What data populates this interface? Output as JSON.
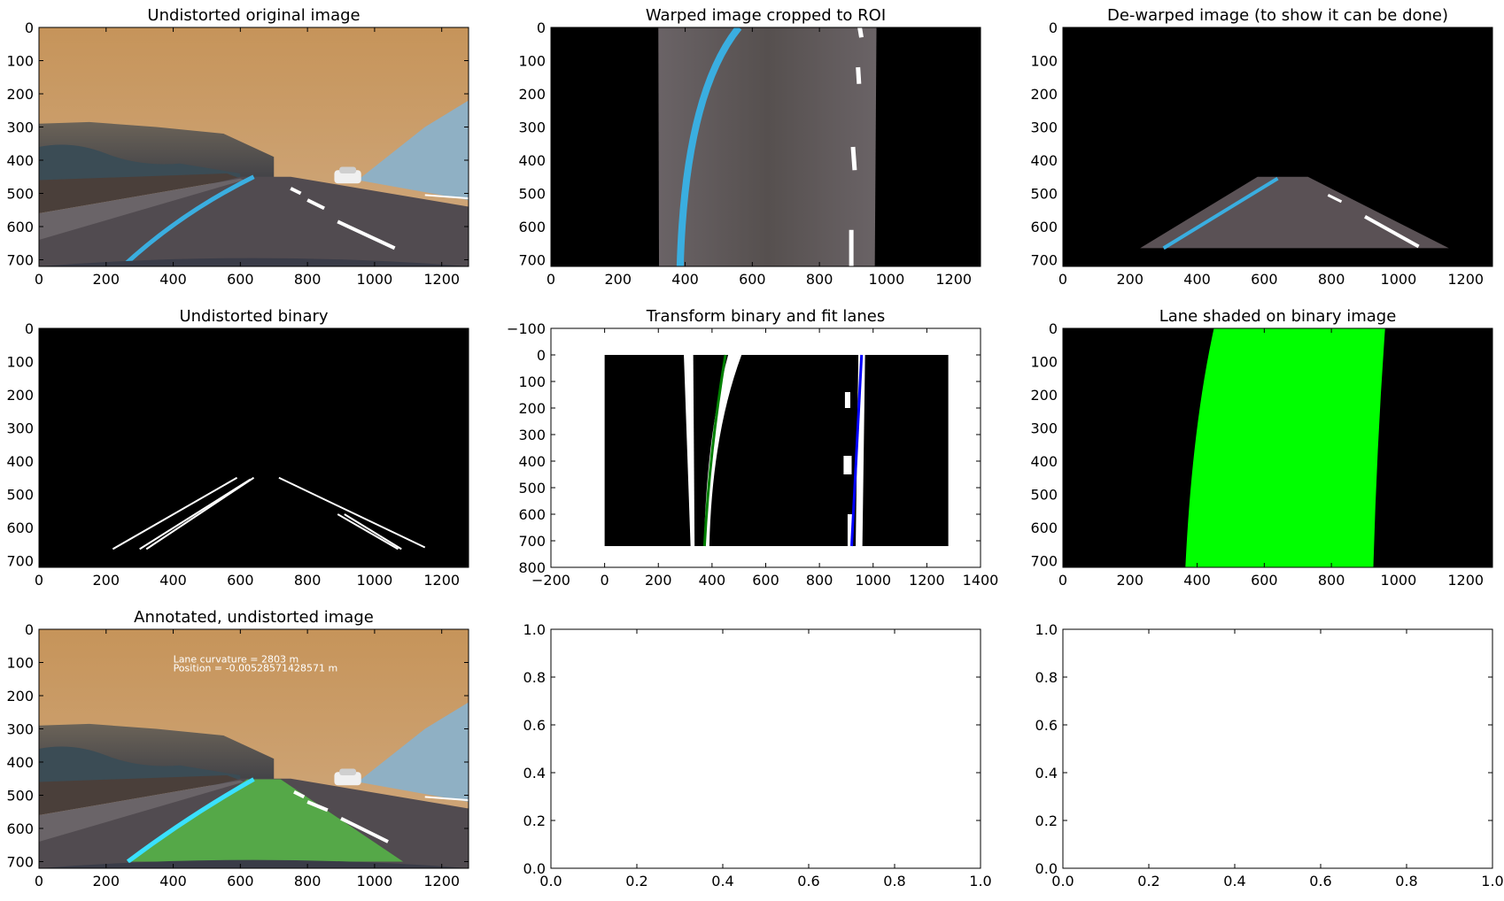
{
  "chart_data": [
    {
      "type": "image",
      "title": "Undistorted original image",
      "xlim": [
        0,
        1280
      ],
      "ylim": [
        720,
        0
      ],
      "xticks": [
        0,
        200,
        400,
        600,
        800,
        1000,
        1200
      ],
      "yticks": [
        0,
        100,
        200,
        300,
        400,
        500,
        600,
        700
      ],
      "image_description": "Dashcam road scene with sky, hills, blue left lane line and white dashed right lane markings",
      "colors": {
        "sky": "#c49a66",
        "road": "#4e4a4f",
        "left_lane_line": "#3aaee0",
        "right_lane_line": "#ffffff"
      }
    },
    {
      "type": "image",
      "title": "Warped image cropped to ROI",
      "xlim": [
        0,
        1280
      ],
      "ylim": [
        720,
        0
      ],
      "xticks": [
        0,
        200,
        400,
        600,
        800,
        1000,
        1200
      ],
      "yticks": [
        0,
        100,
        200,
        300,
        400,
        500,
        600,
        700
      ],
      "image_description": "Bird's-eye warped road strip between x≈320 and x≈970 on black background",
      "colors": {
        "background": "#000000",
        "road": "#5f5558",
        "left_lane_line": "#3aaee0",
        "right_lane_line": "#ffffff"
      }
    },
    {
      "type": "image",
      "title": "De-warped image (to show it can be done)",
      "xlim": [
        0,
        1280
      ],
      "ylim": [
        720,
        0
      ],
      "xticks": [
        0,
        200,
        400,
        600,
        800,
        1000,
        1200
      ],
      "yticks": [
        0,
        100,
        200,
        300,
        400,
        500,
        600,
        700
      ],
      "image_description": "Trapezoidal road region from y≈450 to y≈665 on black background",
      "colors": {
        "background": "#000000",
        "road": "#5a5155",
        "left_lane_line": "#3aaee0",
        "right_lane_line": "#ffffff"
      }
    },
    {
      "type": "image",
      "title": "Undistorted binary",
      "xlim": [
        0,
        1280
      ],
      "ylim": [
        720,
        0
      ],
      "xticks": [
        0,
        200,
        400,
        600,
        800,
        1000,
        1200
      ],
      "yticks": [
        0,
        100,
        200,
        300,
        400,
        500,
        600,
        700
      ],
      "image_description": "Black binary image with white diagonal lane-edge lines converging near (680, 450)",
      "colors": {
        "background": "#000000",
        "foreground": "#ffffff"
      }
    },
    {
      "type": "image",
      "title": "Transform binary and fit lanes",
      "xlim": [
        -200,
        1400
      ],
      "ylim": [
        800,
        -100
      ],
      "xticks": [
        -200,
        0,
        200,
        400,
        600,
        800,
        1000,
        1200,
        1400
      ],
      "yticks": [
        -100,
        0,
        100,
        200,
        300,
        400,
        500,
        600,
        700,
        800
      ],
      "image_description": "Warped binary image (0–1280 by 0–720) with white lane pixels; green polynomial fit on left lane, blue fit on right lane",
      "fits": [
        {
          "color": "#007f00",
          "x_top": 450,
          "x_bottom": 372
        },
        {
          "color": "#0000ff",
          "x_top": 957,
          "x_bottom": 920
        }
      ],
      "colors": {
        "background": "#000000",
        "lane_pixels": "#ffffff",
        "left_fit": "#007f00",
        "right_fit": "#0000ff"
      }
    },
    {
      "type": "image",
      "title": "Lane shaded on binary image",
      "xlim": [
        0,
        1280
      ],
      "ylim": [
        720,
        0
      ],
      "xticks": [
        0,
        200,
        400,
        600,
        800,
        1000,
        1200
      ],
      "yticks": [
        0,
        100,
        200,
        300,
        400,
        500,
        600,
        700
      ],
      "image_description": "Black image with bright green lane polygon; left edge ≈450→365, right edge ≈960→925 from top to bottom",
      "colors": {
        "background": "#000000",
        "lane_fill": "#00ff00"
      }
    },
    {
      "type": "image",
      "title": "Annotated, undistorted image",
      "xlim": [
        0,
        1280
      ],
      "ylim": [
        720,
        0
      ],
      "xticks": [
        0,
        200,
        400,
        600,
        800,
        1000,
        1200
      ],
      "yticks": [
        0,
        100,
        200,
        300,
        400,
        500,
        600,
        700
      ],
      "annotations": [
        "Lane curvature = 2803 m",
        "Position = -0.00528571428571 m"
      ],
      "image_description": "Dashcam road scene with green shaded lane overlay",
      "colors": {
        "sky": "#c49a66",
        "lane_overlay": "#59b84a",
        "left_lane_line": "#3ae0ff"
      }
    },
    {
      "type": "empty",
      "title": "",
      "xlim": [
        0,
        1
      ],
      "ylim": [
        0,
        1
      ],
      "xticks": [
        "0.0",
        "0.2",
        "0.4",
        "0.6",
        "0.8",
        "1.0"
      ],
      "yticks": [
        "0.0",
        "0.2",
        "0.4",
        "0.6",
        "0.8",
        "1.0"
      ]
    },
    {
      "type": "empty",
      "title": "",
      "xlim": [
        0,
        1
      ],
      "ylim": [
        0,
        1
      ],
      "xticks": [
        "0.0",
        "0.2",
        "0.4",
        "0.6",
        "0.8",
        "1.0"
      ],
      "yticks": [
        "0.0",
        "0.2",
        "0.4",
        "0.6",
        "0.8",
        "1.0"
      ]
    }
  ]
}
